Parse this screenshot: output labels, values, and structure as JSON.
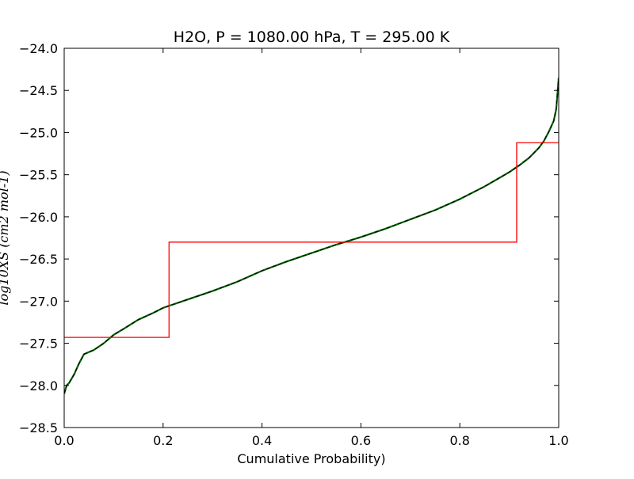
{
  "chart_data": {
    "type": "line",
    "title": "H2O, P = 1080.00 hPa, T = 295.00 K",
    "xlabel": "Cumulative Probability)",
    "ylabel": "log10XS (cm2 mol-1)",
    "xlim": [
      0.0,
      1.0
    ],
    "ylim": [
      -28.5,
      -24.0
    ],
    "x_ticks": [
      0.0,
      0.2,
      0.4,
      0.6,
      0.8,
      1.0
    ],
    "x_tick_labels": [
      "0.0",
      "0.2",
      "0.4",
      "0.6",
      "0.8",
      "1.0"
    ],
    "y_ticks": [
      -24.0,
      -24.5,
      -25.0,
      -25.5,
      -26.0,
      -26.5,
      -27.0,
      -27.5,
      -28.0,
      -28.5
    ],
    "y_tick_labels": [
      "−24.0",
      "−24.5",
      "−25.0",
      "−25.5",
      "−26.0",
      "−26.5",
      "−27.0",
      "−27.5",
      "−28.0",
      "−28.5"
    ],
    "grid": false,
    "legend": "none",
    "series": [
      {
        "kind": "curve",
        "color": "#006400",
        "dash_color": "#000000",
        "x": [
          0.0,
          0.005,
          0.01,
          0.02,
          0.03,
          0.04,
          0.06,
          0.08,
          0.1,
          0.12,
          0.15,
          0.18,
          0.2,
          0.25,
          0.3,
          0.35,
          0.4,
          0.45,
          0.5,
          0.55,
          0.6,
          0.65,
          0.7,
          0.75,
          0.8,
          0.85,
          0.9,
          0.92,
          0.94,
          0.96,
          0.97,
          0.98,
          0.99,
          0.995,
          1.0
        ],
        "y": [
          -28.1,
          -28.0,
          -27.97,
          -27.87,
          -27.74,
          -27.63,
          -27.58,
          -27.5,
          -27.4,
          -27.33,
          -27.22,
          -27.14,
          -27.08,
          -26.98,
          -26.88,
          -26.77,
          -26.64,
          -26.53,
          -26.43,
          -26.33,
          -26.24,
          -26.14,
          -26.03,
          -25.92,
          -25.79,
          -25.64,
          -25.47,
          -25.39,
          -25.3,
          -25.18,
          -25.1,
          -24.99,
          -24.86,
          -24.72,
          -24.35
        ]
      },
      {
        "kind": "step",
        "color": "#ff0000",
        "x": [
          0.0,
          0.212,
          0.212,
          0.915,
          0.915,
          1.0
        ],
        "y": [
          -27.43,
          -27.43,
          -26.3,
          -26.3,
          -25.12,
          -25.12
        ]
      }
    ]
  }
}
